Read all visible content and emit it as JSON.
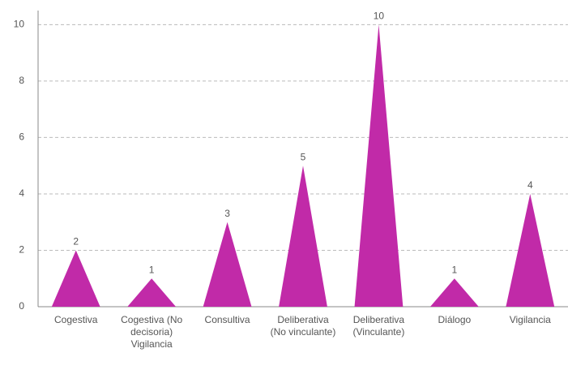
{
  "chart_data": {
    "type": "bar",
    "shape": "triangle",
    "categories": [
      "Cogestiva",
      "Cogestiva (No decisoria) Vigilancia",
      "Consultiva",
      "Deliberativa (No vinculante)",
      "Deliberativa (Vinculante)",
      "Diálogo",
      "Vigilancia"
    ],
    "values": [
      2,
      1,
      3,
      5,
      10,
      1,
      4
    ],
    "color": "#c12aa8",
    "ylim": [
      0,
      10.5
    ],
    "yticks": [
      0,
      2,
      4,
      6,
      8,
      10
    ],
    "grid": true
  }
}
